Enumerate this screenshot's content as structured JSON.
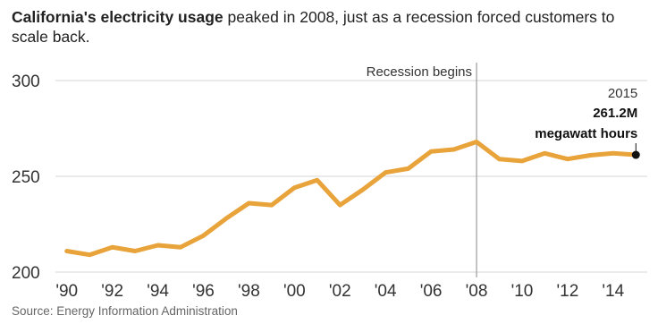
{
  "chart_data": {
    "type": "line",
    "title_bold": "California's electricity usage",
    "title_rest": " peaked in 2008, just as a recession forced customers to scale back.",
    "xlabel": "",
    "ylabel": "",
    "ylim": [
      200,
      300
    ],
    "yticks": [
      200,
      250,
      300
    ],
    "xlim": [
      1989.5,
      2015.5
    ],
    "xticks": [
      {
        "year": 1990,
        "label": "'90"
      },
      {
        "year": 1992,
        "label": "'92"
      },
      {
        "year": 1994,
        "label": "'94"
      },
      {
        "year": 1996,
        "label": "'96"
      },
      {
        "year": 1998,
        "label": "'98"
      },
      {
        "year": 2000,
        "label": "'00"
      },
      {
        "year": 2002,
        "label": "'02"
      },
      {
        "year": 2004,
        "label": "'04"
      },
      {
        "year": 2006,
        "label": "'06"
      },
      {
        "year": 2008,
        "label": "'08"
      },
      {
        "year": 2010,
        "label": "'10"
      },
      {
        "year": 2012,
        "label": "'12"
      },
      {
        "year": 2014,
        "label": "'14"
      }
    ],
    "grid": true,
    "line_color": "#e8a33a",
    "x": [
      1990,
      1991,
      1992,
      1993,
      1994,
      1995,
      1996,
      1997,
      1998,
      1999,
      2000,
      2001,
      2002,
      2003,
      2004,
      2005,
      2006,
      2007,
      2008,
      2009,
      2010,
      2011,
      2012,
      2013,
      2014,
      2015
    ],
    "y": [
      211,
      209,
      213,
      211,
      214,
      213,
      219,
      228,
      236,
      235,
      244,
      248,
      235,
      243,
      252,
      254,
      263,
      264,
      268,
      259,
      258,
      262,
      259,
      261,
      262,
      261.2
    ],
    "annotations": {
      "recession": {
        "x": 2008,
        "label": "Recession begins"
      },
      "endpoint": {
        "x": 2015,
        "y": 261.2,
        "year_label": "2015",
        "value_label": "261.2M",
        "unit_label": "megawatt hours"
      }
    },
    "source": "Source: Energy Information Administration"
  }
}
